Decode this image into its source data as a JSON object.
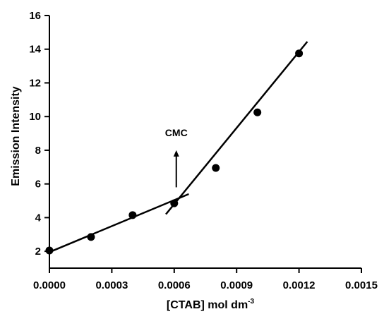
{
  "chart_data": {
    "type": "scatter",
    "title": "",
    "xlabel": "[CTAB] mol dm",
    "xlabel_superscript": "-3",
    "ylabel": "Emission Intensity",
    "xlim": [
      0.0,
      0.0015
    ],
    "ylim": [
      1,
      16
    ],
    "xticks": [
      "0.0000",
      "0.0003",
      "0.0006",
      "0.0009",
      "0.0012",
      "0.0015"
    ],
    "yticks": [
      "2",
      "4",
      "6",
      "8",
      "10",
      "12",
      "14",
      "16"
    ],
    "grid": false,
    "points": [
      {
        "x": 0.0,
        "y": 2.05
      },
      {
        "x": 0.0002,
        "y": 2.85
      },
      {
        "x": 0.0004,
        "y": 4.15
      },
      {
        "x": 0.0006,
        "y": 4.85
      },
      {
        "x": 0.0008,
        "y": 6.95
      },
      {
        "x": 0.001,
        "y": 10.25
      },
      {
        "x": 0.0012,
        "y": 13.75
      }
    ],
    "fit_lines": [
      {
        "x1": 0.0,
        "y1": 1.95,
        "x2": 0.00067,
        "y2": 5.4
      },
      {
        "x1": 0.00056,
        "y1": 4.2,
        "x2": 0.00124,
        "y2": 14.45
      }
    ],
    "annotation": {
      "text": "CMC",
      "arrow_x": 0.00061,
      "arrow_from_y": 5.8,
      "arrow_to_y": 8.0
    }
  }
}
